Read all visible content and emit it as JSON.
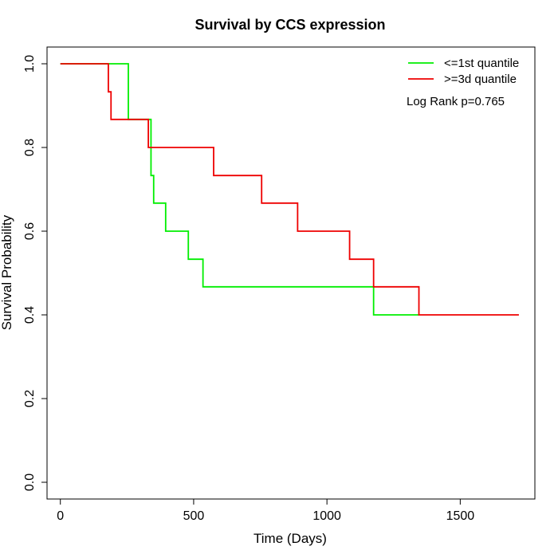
{
  "chart_data": {
    "type": "line",
    "title": "Survival by CCS expression",
    "xlabel": "Time (Days)",
    "ylabel": "Survival Probability",
    "xlim": [
      -50,
      1780
    ],
    "ylim": [
      -0.04,
      1.04
    ],
    "xticks": [
      0,
      500,
      1000,
      1500
    ],
    "yticks": [
      0.0,
      0.2,
      0.4,
      0.6,
      0.8,
      1.0
    ],
    "xtick_labels": [
      "0",
      "500",
      "1000",
      "1500"
    ],
    "ytick_labels": [
      "0.0",
      "0.2",
      "0.4",
      "0.6",
      "0.8",
      "1.0"
    ],
    "grid": false,
    "legend_position": "top-right",
    "annotation": "Log Rank p=0.765",
    "series": [
      {
        "name": "<=1st quantile",
        "color": "#00ee00",
        "x": [
          0,
          255,
          340,
          350,
          395,
          480,
          535,
          1175,
          1345
        ],
        "y": [
          1.0,
          0.867,
          0.733,
          0.667,
          0.6,
          0.533,
          0.467,
          0.4,
          0.4
        ]
      },
      {
        "name": ">=3d quantile",
        "color": "#ee0000",
        "x": [
          0,
          180,
          190,
          330,
          575,
          755,
          890,
          1085,
          1175,
          1345,
          1720
        ],
        "y": [
          1.0,
          0.933,
          0.867,
          0.8,
          0.733,
          0.667,
          0.6,
          0.533,
          0.467,
          0.4,
          0.4
        ]
      }
    ]
  }
}
